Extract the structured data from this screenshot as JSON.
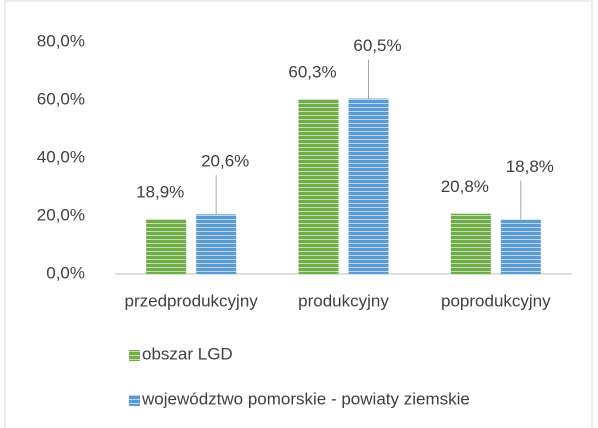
{
  "chart_data": {
    "type": "bar",
    "categories": [
      "przedprodukcyjny",
      "produkcyjny",
      "poprodukcyjny"
    ],
    "series": [
      {
        "name": "obszar LGD",
        "color": "#70ad47",
        "values": [
          18.9,
          60.3,
          20.8
        ],
        "value_labels": [
          "18,9%",
          "60,3%",
          "20,8%"
        ]
      },
      {
        "name": "województwo pomorskie - powiaty ziemskie",
        "color": "#5b9bd5",
        "values": [
          20.6,
          60.5,
          18.8
        ],
        "value_labels": [
          "20,6%",
          "60,5%",
          "18,8%"
        ]
      }
    ],
    "ylim": [
      0,
      80
    ],
    "yticks": [
      {
        "value": 0,
        "label": "0,0%"
      },
      {
        "value": 20,
        "label": "20,0%"
      },
      {
        "value": 40,
        "label": "40,0%"
      },
      {
        "value": 60,
        "label": "60,0%"
      },
      {
        "value": 80,
        "label": "80,0%"
      }
    ],
    "grid": false,
    "legend": "bottom"
  }
}
